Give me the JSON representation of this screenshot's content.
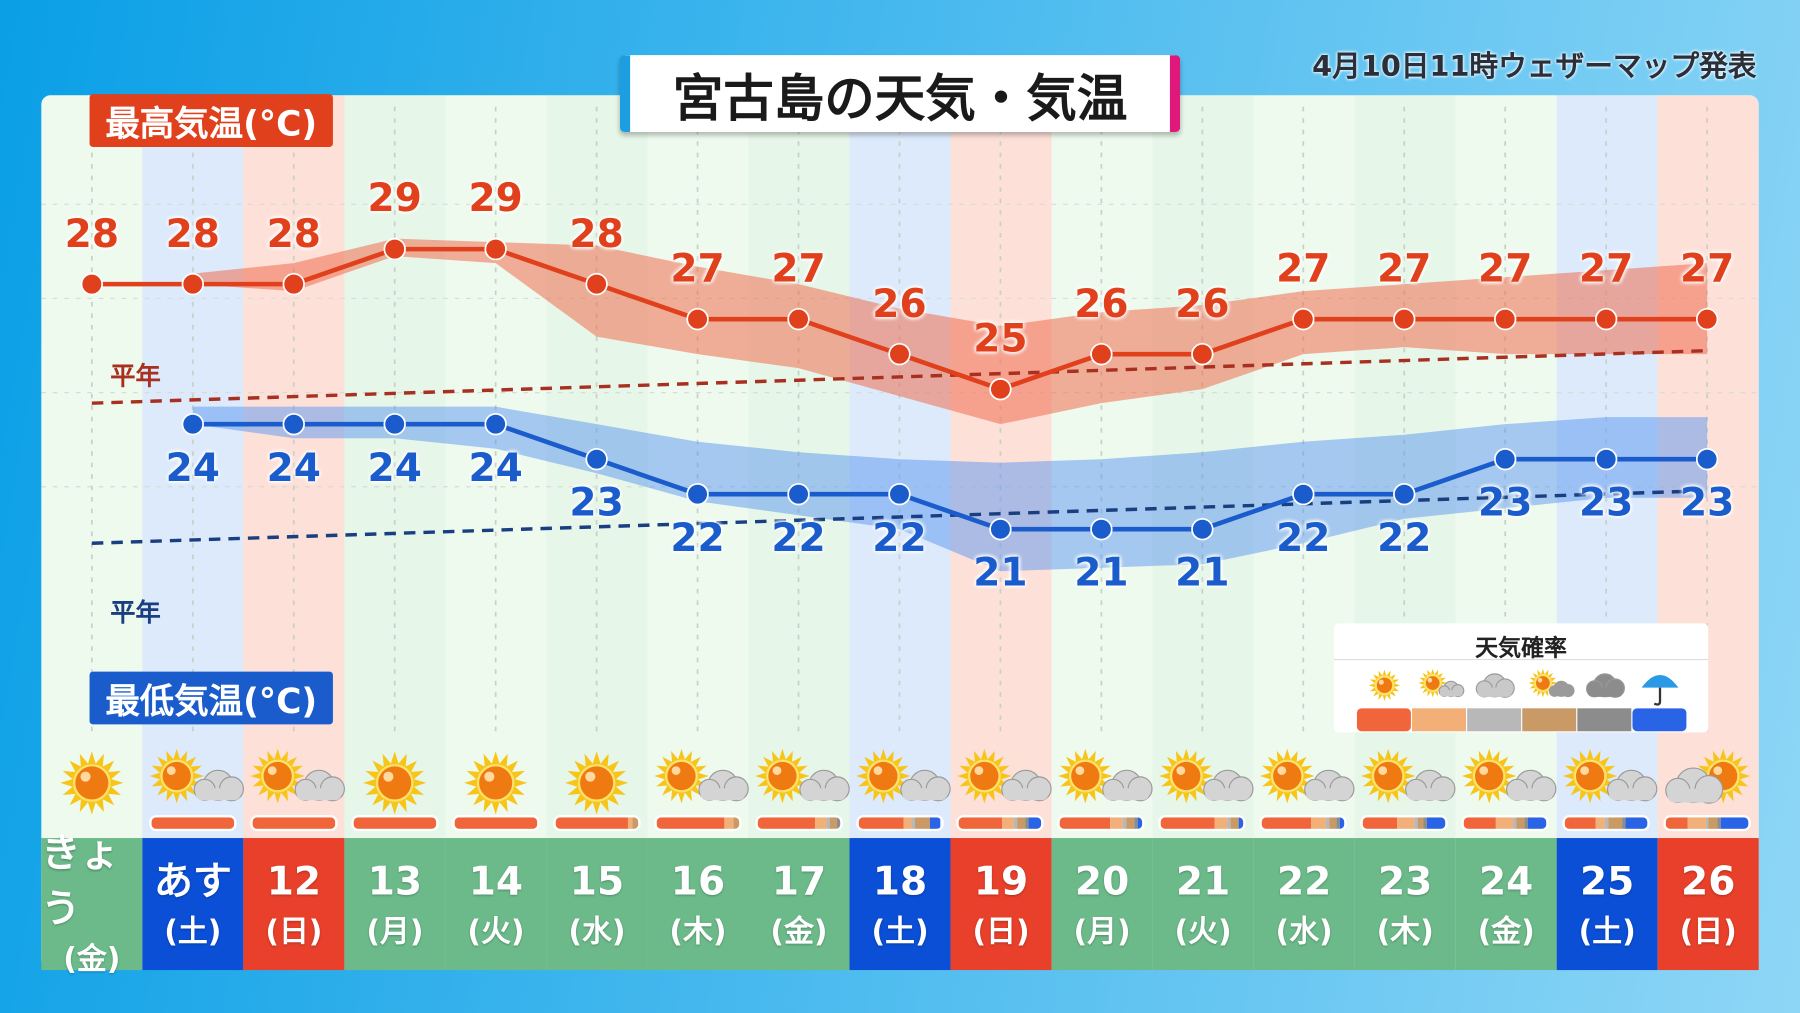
{
  "header": {
    "title": "宮古島の天気・気温",
    "issued": "4月10日11時ウェザーマップ発表"
  },
  "labels": {
    "high": "最高気温(°C)",
    "low": "最低気温(°C)",
    "normal_high": "平年",
    "normal_low": "平年",
    "legend_title": "天気確率"
  },
  "colors": {
    "high": "#e0401c",
    "low": "#1a5ccc",
    "weekday": "#6cba8a",
    "saturday": "#0a4fd6",
    "sunday": "#e8402a"
  },
  "legend": [
    {
      "icon": "sunny-icon",
      "color": "#f0653a"
    },
    {
      "icon": "sunny-then-cloudy-icon",
      "color": "#f2b078"
    },
    {
      "icon": "cloudy-icon",
      "color": "#b8b8b8"
    },
    {
      "icon": "cloudy-with-sun-icon",
      "color": "#c99a66"
    },
    {
      "icon": "overcast-icon",
      "color": "#8c8c8c"
    },
    {
      "icon": "umbrella-rain-icon",
      "color": "#2a64e6"
    }
  ],
  "days": [
    {
      "date": "きょう",
      "dow": "(金)",
      "type": "weekday",
      "icon": "sunny",
      "high": 28,
      "low": null,
      "prob": null
    },
    {
      "date": "あす",
      "dow": "(土)",
      "type": "saturday",
      "icon": "sunny-cloudy",
      "high": 28,
      "low": 24,
      "prob": [
        100,
        0,
        0,
        0,
        0,
        0
      ]
    },
    {
      "date": "12",
      "dow": "(日)",
      "type": "sunday",
      "icon": "sunny-cloudy",
      "high": 28,
      "low": 24,
      "prob": [
        100,
        0,
        0,
        0,
        0,
        0
      ]
    },
    {
      "date": "13",
      "dow": "(月)",
      "type": "weekday",
      "icon": "sunny",
      "high": 29,
      "low": 24,
      "prob": [
        100,
        0,
        0,
        0,
        0,
        0
      ]
    },
    {
      "date": "14",
      "dow": "(火)",
      "type": "weekday",
      "icon": "sunny",
      "high": 29,
      "low": 24,
      "prob": [
        100,
        0,
        0,
        0,
        0,
        0
      ]
    },
    {
      "date": "15",
      "dow": "(水)",
      "type": "weekday",
      "icon": "sunny",
      "high": 28,
      "low": 23,
      "prob": [
        88,
        6,
        0,
        6,
        0,
        0
      ]
    },
    {
      "date": "16",
      "dow": "(木)",
      "type": "weekday",
      "icon": "sunny-cloudy",
      "high": 27,
      "low": 22,
      "prob": [
        82,
        12,
        0,
        6,
        0,
        0
      ]
    },
    {
      "date": "17",
      "dow": "(金)",
      "type": "weekday",
      "icon": "sunny-cloudy",
      "high": 27,
      "low": 22,
      "prob": [
        70,
        14,
        4,
        8,
        4,
        0
      ]
    },
    {
      "date": "18",
      "dow": "(土)",
      "type": "saturday",
      "icon": "sunny-cloudy",
      "high": 26,
      "low": 22,
      "prob": [
        55,
        10,
        4,
        18,
        0,
        13
      ]
    },
    {
      "date": "19",
      "dow": "(日)",
      "type": "sunday",
      "icon": "sunny-cloudy",
      "high": 25,
      "low": 21,
      "prob": [
        52,
        14,
        4,
        10,
        4,
        16
      ]
    },
    {
      "date": "20",
      "dow": "(月)",
      "type": "weekday",
      "icon": "sunny-cloudy",
      "high": 26,
      "low": 21,
      "prob": [
        60,
        16,
        4,
        10,
        4,
        6
      ]
    },
    {
      "date": "21",
      "dow": "(火)",
      "type": "weekday",
      "icon": "sunny-cloudy",
      "high": 26,
      "low": 21,
      "prob": [
        65,
        15,
        4,
        10,
        0,
        6
      ]
    },
    {
      "date": "22",
      "dow": "(水)",
      "type": "weekday",
      "icon": "sunny-cloudy",
      "high": 27,
      "low": 22,
      "prob": [
        60,
        18,
        4,
        8,
        4,
        6
      ]
    },
    {
      "date": "23",
      "dow": "(木)",
      "type": "weekday",
      "icon": "sunny-cloudy",
      "high": 27,
      "low": 22,
      "prob": [
        42,
        20,
        4,
        8,
        4,
        22
      ]
    },
    {
      "date": "24",
      "dow": "(金)",
      "type": "weekday",
      "icon": "sunny-cloudy",
      "high": 27,
      "low": 23,
      "prob": [
        38,
        22,
        4,
        10,
        4,
        22
      ]
    },
    {
      "date": "25",
      "dow": "(土)",
      "type": "saturday",
      "icon": "sunny-cloudy",
      "high": 27,
      "low": 23,
      "prob": [
        38,
        10,
        4,
        18,
        4,
        26
      ]
    },
    {
      "date": "26",
      "dow": "(日)",
      "type": "sunday",
      "icon": "cloudy-sunny",
      "high": 27,
      "low": 23,
      "prob": [
        26,
        22,
        4,
        10,
        4,
        34
      ]
    }
  ],
  "chart_data": {
    "type": "line",
    "categories": [
      "きょう",
      "あす",
      "12",
      "13",
      "14",
      "15",
      "16",
      "17",
      "18",
      "19",
      "20",
      "21",
      "22",
      "23",
      "24",
      "25",
      "26"
    ],
    "series": [
      {
        "name": "最高気温(°C)",
        "values": [
          28,
          28,
          28,
          29,
          29,
          28,
          27,
          27,
          26,
          25,
          26,
          26,
          27,
          27,
          27,
          27,
          27
        ],
        "range_upper": [
          null,
          28.3,
          28.6,
          29.3,
          29.2,
          29.1,
          28.5,
          28,
          27.3,
          26.8,
          27.2,
          27.4,
          27.8,
          28,
          28.2,
          28.4,
          28.6
        ],
        "range_lower": [
          null,
          28,
          27.8,
          28.8,
          28.6,
          26.5,
          26,
          25.6,
          24.8,
          24,
          24.6,
          25,
          26,
          26.2,
          26,
          26,
          26
        ]
      },
      {
        "name": "最低気温(°C)",
        "values": [
          null,
          24,
          24,
          24,
          24,
          23,
          22,
          22,
          22,
          21,
          21,
          21,
          22,
          22,
          23,
          23,
          23
        ],
        "range_upper": [
          null,
          24.5,
          24.5,
          24.5,
          24.5,
          24,
          23.5,
          23.2,
          23,
          22.9,
          23,
          23.2,
          23.5,
          23.7,
          24,
          24.2,
          24.2
        ],
        "range_lower": [
          null,
          24,
          23.6,
          23.6,
          23.3,
          22.6,
          21.8,
          21.4,
          21,
          19.8,
          19.9,
          20,
          20.6,
          21.3,
          21.6,
          21.9,
          21.9
        ]
      },
      {
        "name": "平年",
        "style": "dashed",
        "values": [
          24.6,
          null,
          null,
          null,
          null,
          null,
          null,
          null,
          null,
          null,
          null,
          null,
          null,
          null,
          null,
          null,
          26.1
        ]
      },
      {
        "name": "平年",
        "style": "dashed",
        "values": [
          20.6,
          null,
          null,
          null,
          null,
          null,
          null,
          null,
          null,
          null,
          null,
          null,
          null,
          null,
          null,
          null,
          22.1
        ]
      }
    ]
  }
}
